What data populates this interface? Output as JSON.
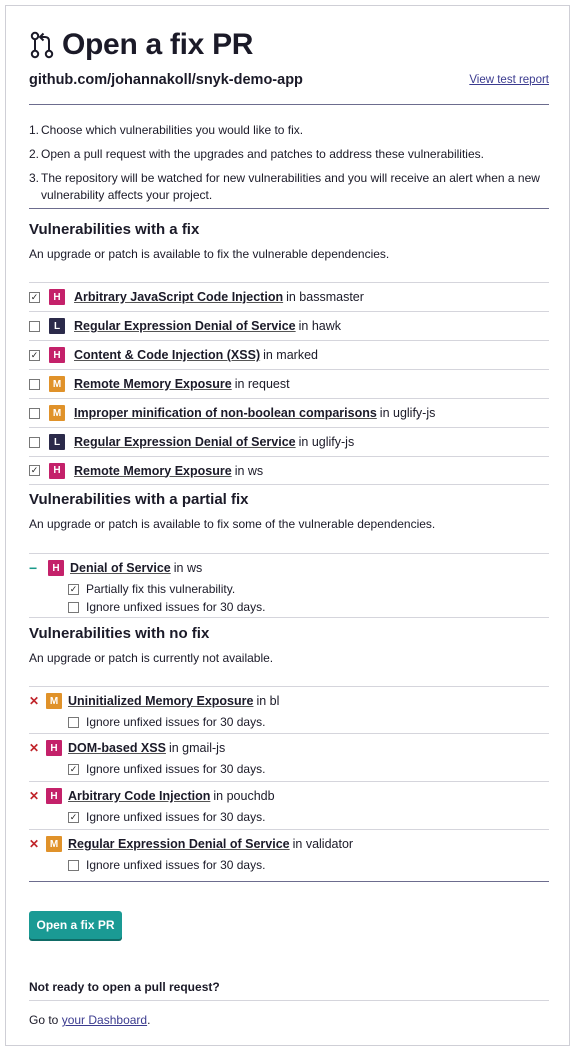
{
  "header": {
    "title": "Open a fix PR",
    "repo": "github.com/johannakoll/snyk-demo-app",
    "report_link": "View test report"
  },
  "steps": [
    {
      "num": "1.",
      "text": "Choose which vulnerabilities you would like to fix."
    },
    {
      "num": "2.",
      "text": "Open a pull request with the upgrades and patches to address these vulnerabilities."
    },
    {
      "num": "3.",
      "text": "The repository will be watched for new vulnerabilities and you will receive an alert when a new vulnerability affects your project."
    }
  ],
  "fix_section": {
    "heading": "Vulnerabilities with a fix",
    "description": "An upgrade or patch is available to fix the vulnerable dependencies.",
    "items": [
      {
        "checked": true,
        "severity": "H",
        "name": "Arbitrary JavaScript Code Injection",
        "pkg": "in bassmaster"
      },
      {
        "checked": false,
        "severity": "L",
        "name": "Regular Expression Denial of Service",
        "pkg": "in hawk"
      },
      {
        "checked": true,
        "severity": "H",
        "name": "Content & Code Injection (XSS)",
        "pkg": "in marked"
      },
      {
        "checked": false,
        "severity": "M",
        "name": "Remote Memory Exposure",
        "pkg": "in request"
      },
      {
        "checked": false,
        "severity": "M",
        "name": "Improper minification of non-boolean comparisons",
        "pkg": "in uglify-js"
      },
      {
        "checked": false,
        "severity": "L",
        "name": "Regular Expression Denial of Service",
        "pkg": "in uglify-js"
      },
      {
        "checked": true,
        "severity": "H",
        "name": "Remote Memory Exposure",
        "pkg": "in ws"
      }
    ]
  },
  "partial_section": {
    "heading": "Vulnerabilities with a partial fix",
    "description": "An upgrade or patch is available to fix some of the vulnerable dependencies.",
    "items": [
      {
        "severity": "H",
        "name": "Denial of Service",
        "pkg": "in ws",
        "marker": "−",
        "options": [
          {
            "checked": true,
            "label": "Partially fix this vulnerability."
          },
          {
            "checked": false,
            "label": "Ignore unfixed issues for 30 days."
          }
        ]
      }
    ]
  },
  "nofix_section": {
    "heading": "Vulnerabilities with no fix",
    "description": "An upgrade or patch is currently not available.",
    "items": [
      {
        "severity": "M",
        "name": "Uninitialized Memory Exposure",
        "pkg": "in bl",
        "marker": "✕",
        "ignore": {
          "checked": false,
          "label": "Ignore unfixed issues for 30 days."
        }
      },
      {
        "severity": "H",
        "name": "DOM-based XSS",
        "pkg": "in gmail-js",
        "marker": "✕",
        "ignore": {
          "checked": true,
          "label": "Ignore unfixed issues for 30 days."
        }
      },
      {
        "severity": "H",
        "name": "Arbitrary Code Injection",
        "pkg": "in pouchdb",
        "marker": "✕",
        "ignore": {
          "checked": true,
          "label": "Ignore unfixed issues for 30 days."
        }
      },
      {
        "severity": "M",
        "name": "Regular Expression Denial of Service",
        "pkg": "in validator",
        "marker": "✕",
        "ignore": {
          "checked": false,
          "label": "Ignore unfixed issues for 30 days."
        }
      }
    ]
  },
  "footer": {
    "button": "Open a fix PR",
    "not_ready": "Not ready to open a pull request?",
    "goto_prefix": "Go to",
    "dashboard_link": "your Dashboard",
    "goto_suffix": "."
  },
  "colors": {
    "high": "#c4216a",
    "medium": "#e0922a",
    "low": "#2b2a4a",
    "accent": "#1a9a94",
    "link": "#3b3b8f"
  }
}
